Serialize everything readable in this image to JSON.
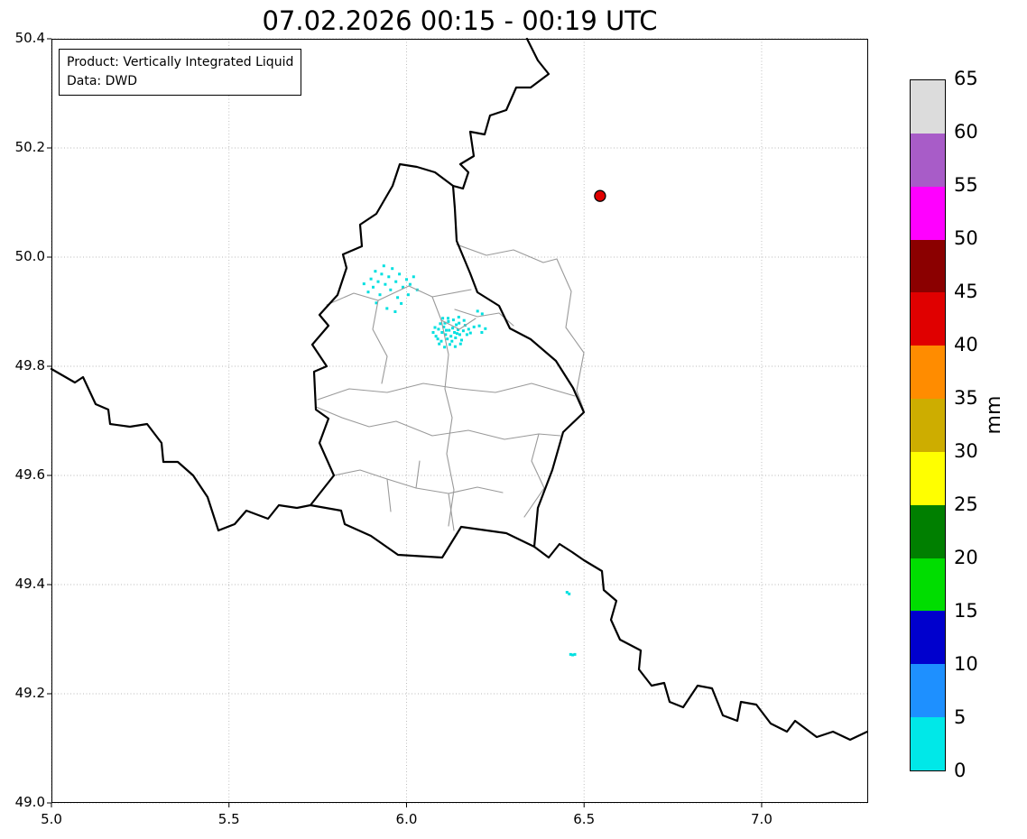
{
  "title": "07.02.2026 00:15 - 00:19 UTC",
  "annotation": {
    "line1": "Product: Vertically Integrated Liquid",
    "line2": "Data: DWD"
  },
  "axes": {
    "x_ticks": [
      "5.0",
      "5.5",
      "6.0",
      "6.5",
      "7.0"
    ],
    "x_values": [
      5.0,
      5.5,
      6.0,
      6.5,
      7.0
    ],
    "y_ticks": [
      "49.0",
      "49.2",
      "49.4",
      "49.6",
      "49.8",
      "50.0",
      "50.2",
      "50.4"
    ],
    "y_values": [
      49.0,
      49.2,
      49.4,
      49.6,
      49.8,
      50.0,
      50.2,
      50.4
    ],
    "lon_range": [
      5.0,
      7.3
    ],
    "lat_range": [
      49.0,
      50.4
    ],
    "grid": "dotted"
  },
  "colorbar": {
    "label": "mm",
    "ticks": [
      0,
      5,
      10,
      15,
      20,
      25,
      30,
      35,
      40,
      45,
      50,
      55,
      60,
      65
    ],
    "colors": [
      "#00E8E8",
      "#1E90FF",
      "#0000CD",
      "#00DD00",
      "#007F00",
      "#FFFF00",
      "#CDAD00",
      "#FF8C00",
      "#E00000",
      "#8B0000",
      "#FF00FF",
      "#A85CC8",
      "#DCDCDC"
    ]
  },
  "marker": {
    "lon": 6.545,
    "lat": 50.112,
    "color": "#e00000",
    "edge": "#000000"
  },
  "radar": {
    "color": "#00E0E0",
    "points": [
      [
        6.075,
        49.862
      ],
      [
        6.08,
        49.871
      ],
      [
        6.083,
        49.855
      ],
      [
        6.09,
        49.868
      ],
      [
        6.088,
        49.85
      ],
      [
        6.095,
        49.878
      ],
      [
        6.1,
        49.862
      ],
      [
        6.098,
        49.846
      ],
      [
        6.105,
        49.872
      ],
      [
        6.11,
        49.858
      ],
      [
        6.108,
        49.879
      ],
      [
        6.115,
        49.85
      ],
      [
        6.12,
        49.866
      ],
      [
        6.118,
        49.882
      ],
      [
        6.125,
        49.855
      ],
      [
        6.13,
        49.87
      ],
      [
        6.128,
        49.846
      ],
      [
        6.135,
        49.862
      ],
      [
        6.14,
        49.876
      ],
      [
        6.138,
        49.852
      ],
      [
        6.145,
        49.867
      ],
      [
        6.15,
        49.858
      ],
      [
        6.148,
        49.879
      ],
      [
        6.155,
        49.848
      ],
      [
        6.16,
        49.865
      ],
      [
        6.165,
        49.875
      ],
      [
        6.17,
        49.858
      ],
      [
        6.175,
        49.868
      ],
      [
        6.18,
        49.861
      ],
      [
        6.102,
        49.888
      ],
      [
        6.117,
        49.888
      ],
      [
        6.132,
        49.885
      ],
      [
        6.147,
        49.89
      ],
      [
        6.162,
        49.884
      ],
      [
        6.092,
        49.841
      ],
      [
        6.122,
        49.84
      ],
      [
        6.152,
        49.841
      ],
      [
        6.107,
        49.835
      ],
      [
        6.137,
        49.836
      ],
      [
        6.205,
        49.874
      ],
      [
        6.212,
        49.862
      ],
      [
        6.222,
        49.869
      ],
      [
        6.19,
        49.872
      ],
      [
        6.112,
        49.866
      ],
      [
        6.142,
        49.86
      ],
      [
        5.88,
        49.951
      ],
      [
        5.892,
        49.936
      ],
      [
        5.9,
        49.96
      ],
      [
        5.906,
        49.945
      ],
      [
        5.912,
        49.974
      ],
      [
        5.92,
        49.955
      ],
      [
        5.925,
        49.931
      ],
      [
        5.93,
        49.969
      ],
      [
        5.936,
        49.984
      ],
      [
        5.94,
        49.95
      ],
      [
        5.95,
        49.964
      ],
      [
        5.955,
        49.94
      ],
      [
        5.96,
        49.979
      ],
      [
        5.97,
        49.955
      ],
      [
        5.975,
        49.926
      ],
      [
        5.98,
        49.969
      ],
      [
        5.99,
        49.945
      ],
      [
        6.0,
        49.959
      ],
      [
        6.005,
        49.931
      ],
      [
        6.01,
        49.95
      ],
      [
        5.945,
        49.906
      ],
      [
        5.968,
        49.9
      ],
      [
        6.02,
        49.964
      ],
      [
        6.03,
        49.94
      ],
      [
        5.915,
        49.916
      ],
      [
        5.985,
        49.915
      ],
      [
        6.2,
        49.901
      ],
      [
        6.213,
        49.896
      ],
      [
        6.452,
        49.386
      ],
      [
        6.458,
        49.383
      ],
      [
        6.462,
        49.272
      ],
      [
        6.468,
        49.271
      ],
      [
        6.474,
        49.272
      ]
    ]
  }
}
